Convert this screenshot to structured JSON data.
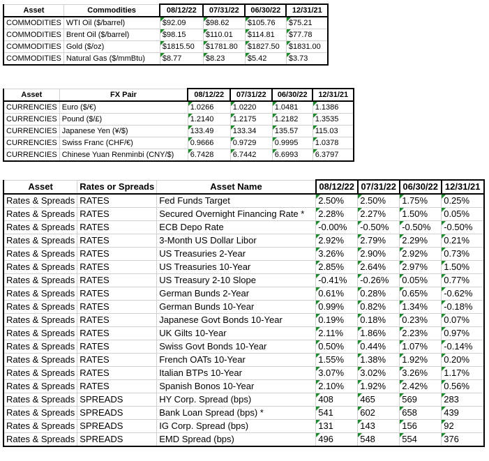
{
  "commodities": {
    "headers": [
      "Asset",
      "Commodities",
      "08/12/22",
      "07/31/22",
      "06/30/22",
      "12/31/21"
    ],
    "rows": [
      [
        "COMMODITIES",
        "WTI Oil ($/barrel)",
        "$92.09",
        "$98.62",
        "$105.76",
        "$75.21"
      ],
      [
        "COMMODITIES",
        "Brent Oil ($/barrel)",
        "$98.15",
        "$110.01",
        "$114.81",
        "$77.78"
      ],
      [
        "COMMODITIES",
        "Gold ($/oz)",
        "$1815.50",
        "$1781.80",
        "$1827.50",
        "$1831.00"
      ],
      [
        "COMMODITIES",
        "Natural Gas ($/mmBtu)",
        "$8.77",
        "$8.23",
        "$5.42",
        "$3.73"
      ]
    ]
  },
  "currencies": {
    "headers": [
      "Asset",
      "FX Pair",
      "08/12/22",
      "07/31/22",
      "06/30/22",
      "12/31/21"
    ],
    "rows": [
      [
        "CURRENCIES",
        "Euro ($/€)",
        "1.0266",
        "1.0220",
        "1.0481",
        "1.1386"
      ],
      [
        "CURRENCIES",
        "Pound ($/£)",
        "1.2140",
        "1.2175",
        "1.2182",
        "1.3535"
      ],
      [
        "CURRENCIES",
        "Japanese Yen (¥/$)",
        "133.49",
        "133.34",
        "135.57",
        "115.03"
      ],
      [
        "CURRENCIES",
        "Swiss Franc (CHF/€)",
        "0.9666",
        "0.9729",
        "0.9995",
        "1.0378"
      ],
      [
        "CURRENCIES",
        "Chinese Yuan Renminbi (CNY/$)",
        "6.7428",
        "6.7442",
        "6.6993",
        "6.3797"
      ]
    ]
  },
  "rates": {
    "headers": [
      "Asset",
      "Rates or Spreads",
      "Asset Name",
      "08/12/22",
      "07/31/22",
      "06/30/22",
      "12/31/21"
    ],
    "rows": [
      [
        "Rates & Spreads",
        "RATES",
        "Fed Funds Target",
        "2.50%",
        "2.50%",
        "1.75%",
        "0.25%"
      ],
      [
        "Rates & Spreads",
        "RATES",
        "Secured Overnight Financing Rate *",
        "2.28%",
        "2.27%",
        "1.50%",
        "0.05%"
      ],
      [
        "Rates & Spreads",
        "RATES",
        "ECB Depo Rate",
        "-0.00%",
        "-0.50%",
        "-0.50%",
        "-0.50%"
      ],
      [
        "Rates & Spreads",
        "RATES",
        "3-Month US Dollar Libor",
        "2.92%",
        "2.79%",
        "2.29%",
        "0.21%"
      ],
      [
        "Rates & Spreads",
        "RATES",
        "US Treasuries 2-Year",
        "3.26%",
        "2.90%",
        "2.92%",
        "0.73%"
      ],
      [
        "Rates & Spreads",
        "RATES",
        "US Treasuries 10-Year",
        "2.85%",
        "2.64%",
        "2.97%",
        "1.50%"
      ],
      [
        "Rates & Spreads",
        "RATES",
        "US Treasury 2-10 Slope",
        "-0.41%",
        "-0.26%",
        "0.05%",
        "0.77%"
      ],
      [
        "Rates & Spreads",
        "RATES",
        "German Bunds 2-Year",
        "0.61%",
        "0.28%",
        "0.65%",
        "-0.62%"
      ],
      [
        "Rates & Spreads",
        "RATES",
        "German Bunds 10-Year",
        "0.99%",
        "0.82%",
        "1.34%",
        "-0.18%"
      ],
      [
        "Rates & Spreads",
        "RATES",
        "Japanese Govt Bonds 10-Year",
        "0.19%",
        "0.18%",
        "0.23%",
        "0.07%"
      ],
      [
        "Rates & Spreads",
        "RATES",
        "UK Gilts 10-Year",
        "2.11%",
        "1.86%",
        "2.23%",
        "0.97%"
      ],
      [
        "Rates & Spreads",
        "RATES",
        "Swiss Govt Bonds 10-Year",
        "0.50%",
        "0.44%",
        "1.07%",
        "-0.14%"
      ],
      [
        "Rates & Spreads",
        "RATES",
        "French OATs 10-Year",
        "1.55%",
        "1.38%",
        "1.92%",
        "0.20%"
      ],
      [
        "Rates & Spreads",
        "RATES",
        "Italian BTPs 10-Year",
        "3.07%",
        "3.02%",
        "3.26%",
        "1.17%"
      ],
      [
        "Rates & Spreads",
        "RATES",
        "Spanish Bonos 10-Year",
        "2.10%",
        "1.92%",
        "2.42%",
        "0.56%"
      ],
      [
        "Rates & Spreads",
        "SPREADS",
        "HY Corp. Spread (bps)",
        "408",
        "465",
        "569",
        "283"
      ],
      [
        "Rates & Spreads",
        "SPREADS",
        "Bank Loan Spread (bps) *",
        "541",
        "602",
        "658",
        "439"
      ],
      [
        "Rates & Spreads",
        "SPREADS",
        "IG Corp. Spread (bps)",
        "131",
        "143",
        "156",
        "92"
      ],
      [
        "Rates & Spreads",
        "SPREADS",
        "EMD Spread (bps)",
        "496",
        "548",
        "554",
        "376"
      ]
    ]
  },
  "colors": {
    "cell_marker": "#1e8a2e",
    "grid": "#d0d0d0",
    "border": "#000000"
  }
}
